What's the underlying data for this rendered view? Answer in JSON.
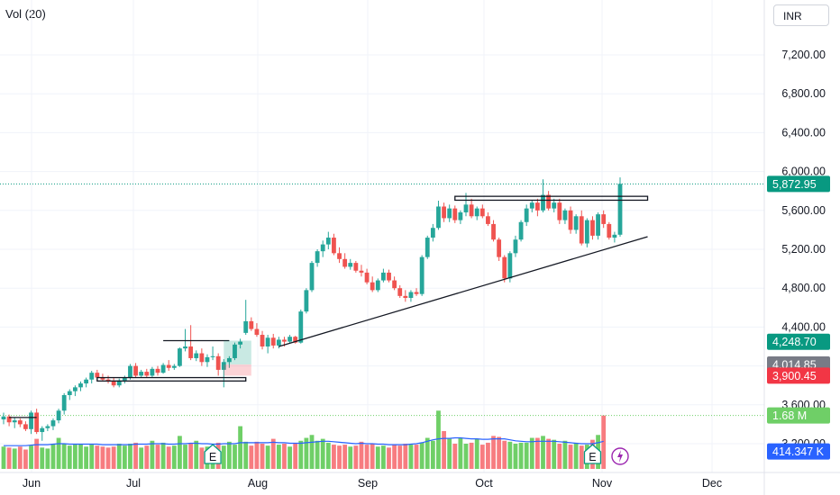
{
  "legend": {
    "volume_label": "Vol (20)"
  },
  "currency": "INR",
  "colors": {
    "up": "#26a69a",
    "down": "#ef5350",
    "vol_up": "#6fcf67",
    "vol_down": "#f77c80",
    "vol_ma": "#2962ff"
  },
  "chart_data": {
    "type": "candlestick",
    "y_axis": {
      "range": [
        3000,
        7400
      ],
      "ticks": [
        "3,200.00",
        "3,600.00",
        "4,000.00",
        "4,400.00",
        "4,800.00",
        "5,200.00",
        "5,600.00",
        "6,000.00",
        "6,400.00",
        "6,800.00",
        "7,200.00"
      ],
      "tick_values": [
        3200,
        3600,
        4000,
        4400,
        4800,
        5200,
        5600,
        6000,
        6400,
        6800,
        7200
      ]
    },
    "x_axis": {
      "labels": [
        "Jun",
        "Jul",
        "Aug",
        "Sep",
        "Oct",
        "Nov",
        "Dec"
      ],
      "label_dates": [
        "2024-06-01",
        "2024-07-01",
        "2024-08-01",
        "2024-09-01",
        "2024-10-01",
        "2024-11-01",
        "2024-12-01"
      ]
    },
    "price_tags": [
      {
        "label": "5,872.95",
        "value": 5872.95,
        "color": "#089981"
      },
      {
        "label": "4,248.70",
        "value": 4248.7,
        "color": "#089981"
      },
      {
        "label": "4,014.85",
        "value": 4014.85,
        "color": "#787b86"
      },
      {
        "label": "3,900.45",
        "value": 3900.45,
        "color": "#f23645"
      },
      {
        "label": "1.68 M",
        "value": 3490,
        "color": "#6fcf67"
      },
      {
        "label": "414.347 K",
        "value": 3120,
        "color": "#2962ff"
      }
    ],
    "candles": [
      {
        "o": 3450,
        "h": 3520,
        "l": 3400,
        "c": 3480
      },
      {
        "o": 3480,
        "h": 3500,
        "l": 3380,
        "c": 3420
      },
      {
        "o": 3420,
        "h": 3470,
        "l": 3360,
        "c": 3440
      },
      {
        "o": 3440,
        "h": 3460,
        "l": 3370,
        "c": 3400
      },
      {
        "o": 3400,
        "h": 3430,
        "l": 3330,
        "c": 3350
      },
      {
        "o": 3350,
        "h": 3540,
        "l": 3300,
        "c": 3520
      },
      {
        "o": 3520,
        "h": 3560,
        "l": 3300,
        "c": 3320
      },
      {
        "o": 3320,
        "h": 3380,
        "l": 3230,
        "c": 3360
      },
      {
        "o": 3360,
        "h": 3400,
        "l": 3330,
        "c": 3380
      },
      {
        "o": 3380,
        "h": 3460,
        "l": 3340,
        "c": 3440
      },
      {
        "o": 3440,
        "h": 3560,
        "l": 3410,
        "c": 3540
      },
      {
        "o": 3540,
        "h": 3720,
        "l": 3500,
        "c": 3700
      },
      {
        "o": 3700,
        "h": 3760,
        "l": 3650,
        "c": 3740
      },
      {
        "o": 3740,
        "h": 3800,
        "l": 3690,
        "c": 3780
      },
      {
        "o": 3780,
        "h": 3840,
        "l": 3740,
        "c": 3820
      },
      {
        "o": 3820,
        "h": 3880,
        "l": 3780,
        "c": 3860
      },
      {
        "o": 3860,
        "h": 3950,
        "l": 3820,
        "c": 3930
      },
      {
        "o": 3930,
        "h": 3960,
        "l": 3850,
        "c": 3880
      },
      {
        "o": 3880,
        "h": 3920,
        "l": 3840,
        "c": 3860
      },
      {
        "o": 3860,
        "h": 3900,
        "l": 3820,
        "c": 3840
      },
      {
        "o": 3840,
        "h": 3880,
        "l": 3780,
        "c": 3800
      },
      {
        "o": 3800,
        "h": 3870,
        "l": 3780,
        "c": 3850
      },
      {
        "o": 3850,
        "h": 3900,
        "l": 3820,
        "c": 3880
      },
      {
        "o": 3880,
        "h": 4020,
        "l": 3860,
        "c": 4000
      },
      {
        "o": 4000,
        "h": 4030,
        "l": 3880,
        "c": 3900
      },
      {
        "o": 3900,
        "h": 3960,
        "l": 3880,
        "c": 3940
      },
      {
        "o": 3940,
        "h": 3970,
        "l": 3880,
        "c": 3900
      },
      {
        "o": 3900,
        "h": 3990,
        "l": 3880,
        "c": 3970
      },
      {
        "o": 3970,
        "h": 4000,
        "l": 3900,
        "c": 3930
      },
      {
        "o": 3930,
        "h": 4030,
        "l": 3920,
        "c": 4010
      },
      {
        "o": 4010,
        "h": 4060,
        "l": 3950,
        "c": 3980
      },
      {
        "o": 3980,
        "h": 4020,
        "l": 3960,
        "c": 4000
      },
      {
        "o": 4000,
        "h": 4190,
        "l": 3990,
        "c": 4180
      },
      {
        "o": 4180,
        "h": 4380,
        "l": 4150,
        "c": 4200
      },
      {
        "o": 4200,
        "h": 4420,
        "l": 4060,
        "c": 4080
      },
      {
        "o": 4080,
        "h": 4160,
        "l": 4050,
        "c": 4130
      },
      {
        "o": 4130,
        "h": 4180,
        "l": 4000,
        "c": 4040
      },
      {
        "o": 4040,
        "h": 4120,
        "l": 3990,
        "c": 4090
      },
      {
        "o": 4090,
        "h": 4200,
        "l": 4060,
        "c": 4100
      },
      {
        "o": 4100,
        "h": 4130,
        "l": 3900,
        "c": 3960
      },
      {
        "o": 3960,
        "h": 4070,
        "l": 3780,
        "c": 4040
      },
      {
        "o": 4040,
        "h": 4100,
        "l": 3980,
        "c": 4080
      },
      {
        "o": 4080,
        "h": 4240,
        "l": 4060,
        "c": 4220
      },
      {
        "o": 4220,
        "h": 4280,
        "l": 4180,
        "c": 4250
      },
      {
        "o": 4340,
        "h": 4680,
        "l": 4320,
        "c": 4460
      },
      {
        "o": 4460,
        "h": 4500,
        "l": 4360,
        "c": 4380
      },
      {
        "o": 4380,
        "h": 4440,
        "l": 4300,
        "c": 4320
      },
      {
        "o": 4320,
        "h": 4360,
        "l": 4170,
        "c": 4200
      },
      {
        "o": 4200,
        "h": 4320,
        "l": 4130,
        "c": 4290
      },
      {
        "o": 4290,
        "h": 4330,
        "l": 4180,
        "c": 4210
      },
      {
        "o": 4210,
        "h": 4300,
        "l": 4180,
        "c": 4270
      },
      {
        "o": 4270,
        "h": 4300,
        "l": 4200,
        "c": 4250
      },
      {
        "o": 4250,
        "h": 4320,
        "l": 4230,
        "c": 4300
      },
      {
        "o": 4300,
        "h": 4310,
        "l": 4230,
        "c": 4240
      },
      {
        "o": 4240,
        "h": 4580,
        "l": 4230,
        "c": 4560
      },
      {
        "o": 4560,
        "h": 4800,
        "l": 4540,
        "c": 4780
      },
      {
        "o": 4780,
        "h": 5080,
        "l": 4760,
        "c": 5060
      },
      {
        "o": 5060,
        "h": 5200,
        "l": 5020,
        "c": 5180
      },
      {
        "o": 5180,
        "h": 5290,
        "l": 5120,
        "c": 5250
      },
      {
        "o": 5250,
        "h": 5380,
        "l": 5200,
        "c": 5320
      },
      {
        "o": 5320,
        "h": 5360,
        "l": 5140,
        "c": 5160
      },
      {
        "o": 5160,
        "h": 5220,
        "l": 5060,
        "c": 5100
      },
      {
        "o": 5100,
        "h": 5160,
        "l": 5000,
        "c": 5020
      },
      {
        "o": 5020,
        "h": 5100,
        "l": 4990,
        "c": 5060
      },
      {
        "o": 5060,
        "h": 5080,
        "l": 4960,
        "c": 4980
      },
      {
        "o": 4980,
        "h": 5040,
        "l": 4920,
        "c": 4960
      },
      {
        "o": 4960,
        "h": 5000,
        "l": 4840,
        "c": 4860
      },
      {
        "o": 4860,
        "h": 4920,
        "l": 4760,
        "c": 4780
      },
      {
        "o": 4780,
        "h": 4900,
        "l": 4760,
        "c": 4880
      },
      {
        "o": 4880,
        "h": 5000,
        "l": 4860,
        "c": 4960
      },
      {
        "o": 4960,
        "h": 4990,
        "l": 4860,
        "c": 4880
      },
      {
        "o": 4880,
        "h": 4920,
        "l": 4780,
        "c": 4800
      },
      {
        "o": 4800,
        "h": 4830,
        "l": 4700,
        "c": 4720
      },
      {
        "o": 4720,
        "h": 4780,
        "l": 4660,
        "c": 4700
      },
      {
        "o": 4700,
        "h": 4780,
        "l": 4660,
        "c": 4760
      },
      {
        "o": 4760,
        "h": 4800,
        "l": 4720,
        "c": 4740
      },
      {
        "o": 4740,
        "h": 5140,
        "l": 4720,
        "c": 5120
      },
      {
        "o": 5120,
        "h": 5340,
        "l": 5100,
        "c": 5320
      },
      {
        "o": 5320,
        "h": 5460,
        "l": 5280,
        "c": 5420
      },
      {
        "o": 5420,
        "h": 5700,
        "l": 5400,
        "c": 5640
      },
      {
        "o": 5640,
        "h": 5680,
        "l": 5480,
        "c": 5520
      },
      {
        "o": 5520,
        "h": 5660,
        "l": 5480,
        "c": 5620
      },
      {
        "o": 5620,
        "h": 5650,
        "l": 5470,
        "c": 5500
      },
      {
        "o": 5500,
        "h": 5600,
        "l": 5460,
        "c": 5580
      },
      {
        "o": 5580,
        "h": 5780,
        "l": 5540,
        "c": 5660
      },
      {
        "o": 5660,
        "h": 5720,
        "l": 5520,
        "c": 5540
      },
      {
        "o": 5540,
        "h": 5640,
        "l": 5500,
        "c": 5620
      },
      {
        "o": 5620,
        "h": 5660,
        "l": 5520,
        "c": 5540
      },
      {
        "o": 5540,
        "h": 5580,
        "l": 5440,
        "c": 5460
      },
      {
        "o": 5460,
        "h": 5500,
        "l": 5280,
        "c": 5300
      },
      {
        "o": 5300,
        "h": 5320,
        "l": 5080,
        "c": 5120
      },
      {
        "o": 5120,
        "h": 5140,
        "l": 4860,
        "c": 4900
      },
      {
        "o": 4900,
        "h": 5180,
        "l": 4860,
        "c": 5160
      },
      {
        "o": 5160,
        "h": 5340,
        "l": 5120,
        "c": 5300
      },
      {
        "o": 5300,
        "h": 5500,
        "l": 5280,
        "c": 5480
      },
      {
        "o": 5480,
        "h": 5660,
        "l": 5440,
        "c": 5620
      },
      {
        "o": 5620,
        "h": 5700,
        "l": 5580,
        "c": 5680
      },
      {
        "o": 5680,
        "h": 5720,
        "l": 5540,
        "c": 5600
      },
      {
        "o": 5600,
        "h": 5920,
        "l": 5580,
        "c": 5760
      },
      {
        "o": 5760,
        "h": 5800,
        "l": 5600,
        "c": 5620
      },
      {
        "o": 5620,
        "h": 5720,
        "l": 5580,
        "c": 5680
      },
      {
        "o": 5680,
        "h": 5720,
        "l": 5460,
        "c": 5500
      },
      {
        "o": 5500,
        "h": 5620,
        "l": 5460,
        "c": 5600
      },
      {
        "o": 5600,
        "h": 5640,
        "l": 5360,
        "c": 5400
      },
      {
        "o": 5400,
        "h": 5560,
        "l": 5360,
        "c": 5540
      },
      {
        "o": 5540,
        "h": 5600,
        "l": 5240,
        "c": 5260
      },
      {
        "o": 5260,
        "h": 5520,
        "l": 5220,
        "c": 5500
      },
      {
        "o": 5500,
        "h": 5540,
        "l": 5300,
        "c": 5340
      },
      {
        "o": 5340,
        "h": 5580,
        "l": 5300,
        "c": 5560
      },
      {
        "o": 5560,
        "h": 5600,
        "l": 5420,
        "c": 5460
      },
      {
        "o": 5460,
        "h": 5480,
        "l": 5300,
        "c": 5320
      },
      {
        "o": 5320,
        "h": 5380,
        "l": 5270,
        "c": 5350
      },
      {
        "o": 5350,
        "h": 5940,
        "l": 5330,
        "c": 5873
      }
    ],
    "volume": [
      3170,
      3160,
      3150,
      3170,
      3140,
      3180,
      3250,
      3160,
      3150,
      3200,
      3260,
      3200,
      3180,
      3190,
      3200,
      3170,
      3190,
      3180,
      3170,
      3160,
      3170,
      3200,
      3180,
      3200,
      3210,
      3160,
      3180,
      3230,
      3190,
      3210,
      3170,
      3180,
      3280,
      3190,
      3200,
      3230,
      3160,
      3170,
      3170,
      3210,
      3180,
      3220,
      3190,
      3380,
      3220,
      3180,
      3220,
      3200,
      3180,
      3250,
      3190,
      3200,
      3170,
      3200,
      3230,
      3260,
      3290,
      3230,
      3250,
      3210,
      3190,
      3180,
      3190,
      3170,
      3180,
      3220,
      3190,
      3200,
      3170,
      3180,
      3160,
      3190,
      3180,
      3200,
      3190,
      3190,
      3210,
      3260,
      3230,
      3540,
      3330,
      3250,
      3200,
      3260,
      3200,
      3210,
      3250,
      3190,
      3210,
      3280,
      3270,
      3230,
      3220,
      3200,
      3210,
      3210,
      3260,
      3260,
      3280,
      3250,
      3240,
      3200,
      3230,
      3190,
      3210,
      3180,
      3190,
      3240,
      3290,
      3490
    ],
    "volume_ma": [
      3180,
      3180,
      3180,
      3180,
      3180,
      3185,
      3190,
      3190,
      3190,
      3195,
      3200,
      3200,
      3195,
      3195,
      3195,
      3195,
      3195,
      3195,
      3190,
      3190,
      3190,
      3190,
      3190,
      3190,
      3195,
      3195,
      3195,
      3200,
      3200,
      3200,
      3195,
      3195,
      3200,
      3200,
      3205,
      3205,
      3200,
      3200,
      3195,
      3195,
      3200,
      3200,
      3200,
      3210,
      3210,
      3210,
      3210,
      3210,
      3210,
      3215,
      3210,
      3210,
      3205,
      3205,
      3205,
      3210,
      3215,
      3220,
      3225,
      3225,
      3220,
      3215,
      3210,
      3205,
      3200,
      3205,
      3200,
      3200,
      3195,
      3195,
      3190,
      3190,
      3190,
      3190,
      3195,
      3200,
      3210,
      3225,
      3240,
      3250,
      3255,
      3255,
      3260,
      3260,
      3255,
      3250,
      3250,
      3245,
      3245,
      3250,
      3250,
      3250,
      3240,
      3230,
      3225,
      3220,
      3220,
      3225,
      3225,
      3225,
      3225,
      3220,
      3215,
      3210,
      3205,
      3200,
      3200,
      3200,
      3210,
      3225
    ],
    "volume_range": [
      3000,
      3560
    ],
    "annotations": [
      {
        "type": "hline",
        "from": 1,
        "to": 6,
        "value": 3470
      },
      {
        "type": "hline",
        "from": 29,
        "to": 41,
        "value": 4260
      },
      {
        "type": "box",
        "from": 17,
        "to": 44,
        "y1": 3880,
        "y2": 3845
      },
      {
        "type": "box",
        "from": 82,
        "to": 117,
        "y1": 5745,
        "y2": 5705
      },
      {
        "type": "trendline",
        "x1": 50,
        "y1": 4200,
        "x2": 117,
        "y2": 5330
      }
    ],
    "event_markers": [
      {
        "label": "E",
        "at": 38
      },
      {
        "label": "E",
        "at": 107
      }
    ]
  }
}
